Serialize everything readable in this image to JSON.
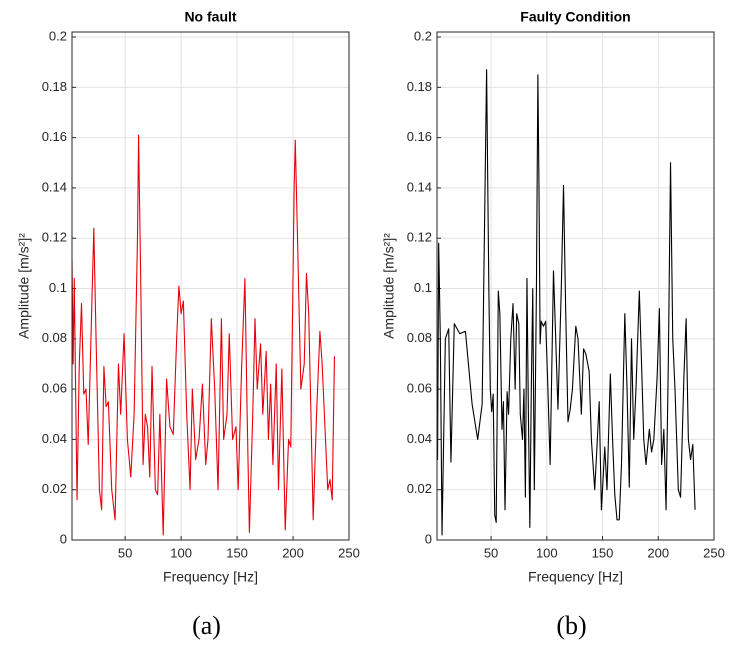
{
  "chart_data": [
    {
      "type": "line",
      "title": "No fault",
      "caption": "(a)",
      "xlabel": "Frequency [Hz]",
      "ylabel": "Amplitude [m/s²]²",
      "color": "#e8000b",
      "grid": true,
      "xlim": [
        2.5,
        250
      ],
      "xticks": [
        50,
        100,
        150,
        200,
        250
      ],
      "ylim": [
        0,
        0.202
      ],
      "yticks": [
        0,
        0.02,
        0.04,
        0.06,
        0.08,
        0.1,
        0.12,
        0.14,
        0.16,
        0.18,
        0.2
      ],
      "x": [
        2.5,
        3.5,
        4.5,
        6,
        7,
        9,
        11,
        13,
        15,
        17,
        20,
        22,
        24,
        27,
        29,
        31,
        33,
        35,
        38,
        41,
        44,
        46,
        49,
        52,
        55,
        58,
        61,
        62,
        64,
        66,
        68,
        70,
        72,
        74,
        77,
        79,
        81,
        84,
        87,
        90,
        93,
        96,
        98,
        100,
        102,
        105,
        108,
        110,
        113,
        116,
        119,
        122,
        124,
        127,
        130,
        133,
        136,
        138,
        141,
        143,
        146,
        149,
        151,
        154,
        157,
        159,
        161,
        164,
        166,
        168,
        171,
        173,
        176,
        178,
        180,
        182,
        185,
        187,
        190,
        193,
        196,
        198,
        201,
        202,
        204,
        207,
        210,
        212,
        214,
        216,
        218,
        221,
        224,
        226,
        229,
        231,
        233,
        235,
        237
      ],
      "values": [
        0.112,
        0.07,
        0.104,
        0.05,
        0.016,
        0.07,
        0.094,
        0.058,
        0.06,
        0.038,
        0.09,
        0.124,
        0.08,
        0.02,
        0.012,
        0.069,
        0.053,
        0.055,
        0.02,
        0.008,
        0.07,
        0.05,
        0.082,
        0.04,
        0.025,
        0.05,
        0.12,
        0.161,
        0.1,
        0.03,
        0.05,
        0.045,
        0.025,
        0.069,
        0.02,
        0.018,
        0.05,
        0.002,
        0.064,
        0.045,
        0.042,
        0.08,
        0.101,
        0.09,
        0.095,
        0.05,
        0.02,
        0.06,
        0.032,
        0.04,
        0.062,
        0.03,
        0.04,
        0.088,
        0.06,
        0.02,
        0.088,
        0.04,
        0.05,
        0.082,
        0.04,
        0.045,
        0.02,
        0.068,
        0.104,
        0.05,
        0.003,
        0.05,
        0.088,
        0.06,
        0.078,
        0.05,
        0.075,
        0.04,
        0.062,
        0.03,
        0.07,
        0.02,
        0.068,
        0.004,
        0.04,
        0.037,
        0.14,
        0.159,
        0.12,
        0.06,
        0.07,
        0.106,
        0.09,
        0.05,
        0.008,
        0.05,
        0.083,
        0.07,
        0.04,
        0.02,
        0.024,
        0.016,
        0.073
      ]
    },
    {
      "type": "line",
      "title": "Faulty Condition",
      "caption": "(b)",
      "xlabel": "Frequency [Hz]",
      "ylabel": "Amplitude [m/s²]²",
      "color": "#000000",
      "grid": true,
      "xlim": [
        1.5,
        250
      ],
      "xticks": [
        50,
        100,
        150,
        200,
        250
      ],
      "ylim": [
        0,
        0.202
      ],
      "yticks": [
        0,
        0.02,
        0.04,
        0.06,
        0.08,
        0.1,
        0.12,
        0.14,
        0.16,
        0.18,
        0.2
      ],
      "x": [
        1.5,
        2,
        3,
        4.5,
        6,
        9,
        12,
        14,
        17,
        22,
        27,
        33,
        38,
        42,
        44,
        46,
        48,
        49.3,
        50.6,
        51.9,
        53.3,
        54.6,
        56.5,
        57.9,
        59.8,
        61.1,
        62.5,
        64.4,
        65.7,
        67.7,
        69.7,
        71.6,
        73,
        74.9,
        76.2,
        78.2,
        79.5,
        80.8,
        82.2,
        83.5,
        84.8,
        86.1,
        87.4,
        88.8,
        90.7,
        92,
        93,
        94,
        95,
        97,
        99,
        101,
        103,
        106,
        108,
        110,
        113,
        115,
        117,
        119,
        121,
        123,
        126,
        128,
        131,
        133,
        135,
        138,
        140,
        143,
        145,
        147,
        149,
        152,
        154,
        157,
        159,
        161,
        163,
        165,
        167,
        170,
        172,
        174,
        176,
        178,
        180,
        183,
        185,
        187,
        189,
        192,
        194,
        196,
        199,
        201,
        203,
        205,
        207,
        209,
        211,
        213,
        215,
        218,
        220,
        223,
        225,
        227,
        229,
        231,
        233
      ],
      "values": [
        0.06,
        0.032,
        0.118,
        0.08,
        0.002,
        0.08,
        0.084,
        0.031,
        0.086,
        0.082,
        0.083,
        0.054,
        0.04,
        0.054,
        0.12,
        0.187,
        0.1,
        0.06,
        0.051,
        0.058,
        0.01,
        0.007,
        0.099,
        0.09,
        0.044,
        0.055,
        0.012,
        0.059,
        0.05,
        0.08,
        0.094,
        0.06,
        0.09,
        0.086,
        0.05,
        0.04,
        0.06,
        0.017,
        0.104,
        0.05,
        0.005,
        0.06,
        0.1,
        0.02,
        0.1,
        0.185,
        0.14,
        0.078,
        0.087,
        0.085,
        0.087,
        0.06,
        0.03,
        0.107,
        0.08,
        0.052,
        0.1,
        0.141,
        0.09,
        0.047,
        0.052,
        0.06,
        0.085,
        0.08,
        0.05,
        0.076,
        0.074,
        0.067,
        0.04,
        0.02,
        0.037,
        0.055,
        0.012,
        0.037,
        0.02,
        0.066,
        0.04,
        0.018,
        0.008,
        0.008,
        0.03,
        0.09,
        0.06,
        0.021,
        0.08,
        0.04,
        0.06,
        0.099,
        0.07,
        0.04,
        0.03,
        0.044,
        0.035,
        0.04,
        0.065,
        0.092,
        0.03,
        0.044,
        0.012,
        0.07,
        0.15,
        0.08,
        0.06,
        0.02,
        0.017,
        0.065,
        0.088,
        0.04,
        0.032,
        0.038,
        0.012
      ]
    }
  ]
}
